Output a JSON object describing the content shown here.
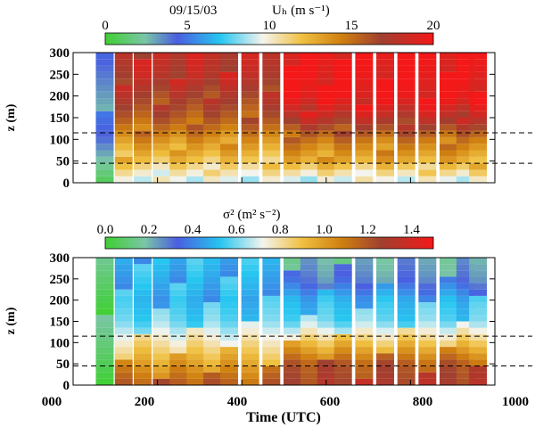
{
  "figure": {
    "date": "09/15/03",
    "xlabel": "Time (UTC)"
  },
  "chart_data": [
    {
      "type": "heatmap",
      "panel": "top",
      "colorbar": {
        "title": "Uₕ (m s⁻¹)",
        "ticks": [
          "0",
          "5",
          "10",
          "15",
          "20"
        ],
        "range": [
          0,
          20
        ],
        "position": "top"
      },
      "ylabel": "z (m)",
      "yticks": [
        "0",
        "50",
        "100",
        "150",
        "200",
        "250",
        "300"
      ],
      "ylim": [
        0,
        300
      ],
      "xlim": [
        0,
        1000
      ],
      "reference_lines_z": [
        45,
        115
      ],
      "grid": false,
      "profile_times": [
        75,
        120,
        165,
        210,
        250,
        290,
        330,
        370,
        420,
        470,
        520,
        560,
        600,
        640,
        690,
        740,
        790,
        840,
        890,
        930,
        960
      ],
      "mean_speed_by_height": {
        "z": [
          0,
          50,
          100,
          150,
          200,
          250,
          300
        ],
        "early_lt_110": [
          2,
          3,
          4,
          4,
          4,
          4,
          4
        ],
        "mid_200_420": [
          9,
          12,
          14,
          16,
          17,
          18,
          18
        ],
        "late_gt_500": [
          9,
          13,
          15,
          18,
          20,
          20,
          20
        ]
      }
    },
    {
      "type": "heatmap",
      "panel": "bottom",
      "colorbar": {
        "title": "σ² (m² s⁻²)",
        "ticks": [
          "0.0",
          "0.2",
          "0.4",
          "0.6",
          "0.8",
          "1.0",
          "1.2",
          "1.4"
        ],
        "range": [
          0,
          1.5
        ],
        "position": "top"
      },
      "ylabel": "z (m)",
      "yticks": [
        "0",
        "50",
        "100",
        "150",
        "200",
        "250",
        "300"
      ],
      "ylim": [
        0,
        300
      ],
      "xticks": [
        "000",
        "200",
        "400",
        "600",
        "800",
        "1000"
      ],
      "xlim": [
        0,
        1000
      ],
      "reference_lines_z": [
        45,
        115
      ],
      "grid": false,
      "profile_times": [
        75,
        120,
        165,
        210,
        250,
        290,
        330,
        370,
        420,
        470,
        520,
        560,
        600,
        640,
        690,
        740,
        790,
        840,
        890,
        930,
        960
      ],
      "mean_variance_by_height": {
        "z": [
          0,
          50,
          100,
          150,
          200,
          250,
          300
        ],
        "early_lt_110": [
          0.1,
          0.1,
          0.1,
          0.1,
          0.1,
          0.1,
          0.1
        ],
        "mid_200_500": [
          1.2,
          1.0,
          0.8,
          0.6,
          0.5,
          0.5,
          0.5
        ],
        "late_gt_500": [
          1.3,
          1.2,
          0.9,
          0.6,
          0.5,
          0.3,
          0.2
        ]
      }
    }
  ]
}
